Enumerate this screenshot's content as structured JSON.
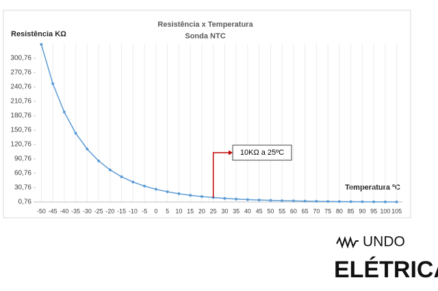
{
  "chart_data": {
    "type": "line",
    "title": "Resistência x Temperatura",
    "subtitle": "Sonda NTC",
    "y_label": "Resistência KΩ",
    "x_label": "Temperatura ºC",
    "categories": [
      "-50",
      "-45",
      "-40",
      "-35",
      "-30",
      "-25",
      "-20",
      "-15",
      "-10",
      "-5",
      "0",
      "5",
      "10",
      "15",
      "20",
      "25",
      "30",
      "35",
      "40",
      "45",
      "50",
      "55",
      "60",
      "65",
      "70",
      "75",
      "80",
      "85",
      "90",
      "95",
      "100",
      "105"
    ],
    "values": [
      329.5,
      247.7,
      188.5,
      144.1,
      111.3,
      86.4,
      67.7,
      53.4,
      42.4,
      33.9,
      27.3,
      22.1,
      18.0,
      14.7,
      12.1,
      10.0,
      8.3,
      6.9,
      5.8,
      4.9,
      4.2,
      3.5,
      3.0,
      2.6,
      2.2,
      1.9,
      1.7,
      1.5,
      1.3,
      1.1,
      1.0,
      0.9
    ],
    "color": "#5b9bd5",
    "ylim": [
      0.76,
      330.76
    ],
    "yticks": [
      {
        "value": 0.76,
        "label": "0,76"
      },
      {
        "value": 30.76,
        "label": "30,76"
      },
      {
        "value": 60.76,
        "label": "60,76"
      },
      {
        "value": 90.76,
        "label": "90,76"
      },
      {
        "value": 120.76,
        "label": "120,76"
      },
      {
        "value": 150.76,
        "label": "150,76"
      },
      {
        "value": 180.76,
        "label": "180,76"
      },
      {
        "value": 210.76,
        "label": "210,76"
      },
      {
        "value": 240.76,
        "label": "240,76"
      },
      {
        "value": 270.76,
        "label": "270,76"
      },
      {
        "value": 300.76,
        "label": "300,76"
      }
    ],
    "grid": "x",
    "annotation": {
      "text": "10KΩ a 25ºC",
      "at": "25",
      "color": "#c00000"
    }
  },
  "logo": {
    "top": "UNDO",
    "bottom": "ELÉTRICA"
  }
}
